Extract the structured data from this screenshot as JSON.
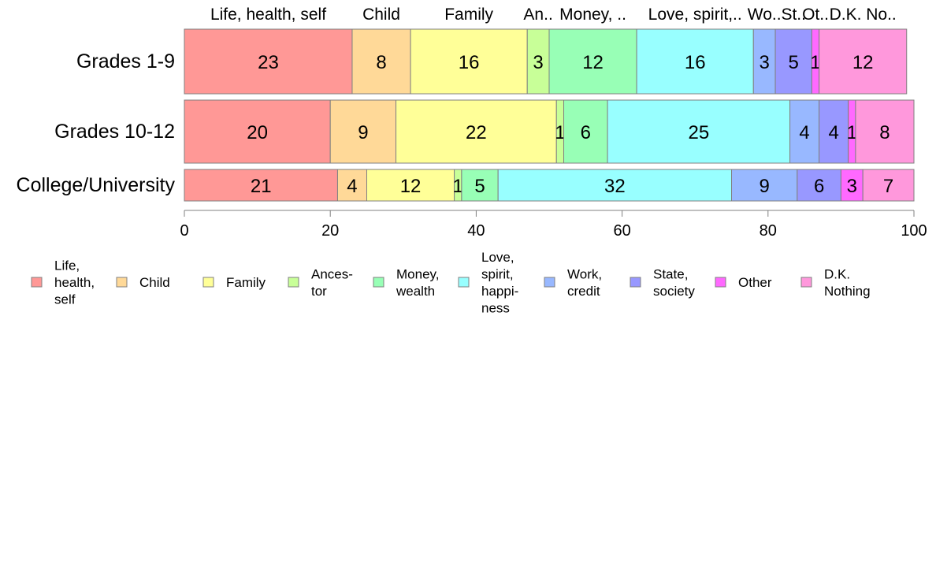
{
  "chart_data": {
    "type": "bar",
    "orientation": "horizontal",
    "stacked": true,
    "categories": [
      "Grades 1-9",
      "Grades 10-12",
      "College/University"
    ],
    "top_labels": [
      "Life, health, self",
      "Child",
      "Family",
      "An..",
      "Money, ..",
      "Love, spirit,..",
      "Wo..",
      "St..",
      "Ot..",
      "D.K. No.."
    ],
    "series": [
      {
        "name": "Life, health, self",
        "legend_label": [
          "Life,",
          "health,",
          "self"
        ],
        "color": "#FF9896",
        "values": [
          23,
          20,
          21
        ]
      },
      {
        "name": "Child",
        "legend_label": [
          "Child"
        ],
        "color": "#FFD998",
        "values": [
          8,
          9,
          4
        ]
      },
      {
        "name": "Family",
        "legend_label": [
          "Family"
        ],
        "color": "#FFFF98",
        "values": [
          16,
          22,
          12
        ]
      },
      {
        "name": "Ancestor",
        "legend_label": [
          "Ances-",
          "tor"
        ],
        "color": "#C8FF98",
        "values": [
          3,
          1,
          1
        ]
      },
      {
        "name": "Money, wealth",
        "legend_label": [
          "Money,",
          "wealth"
        ],
        "color": "#98FFB6",
        "values": [
          12,
          6,
          5
        ]
      },
      {
        "name": "Love, spirit, happiness",
        "legend_label": [
          "Love,",
          "spirit,",
          "happi-",
          "ness"
        ],
        "color": "#98FFFF",
        "values": [
          16,
          25,
          32
        ]
      },
      {
        "name": "Work, credit",
        "legend_label": [
          "Work,",
          "credit"
        ],
        "color": "#98B8FF",
        "values": [
          3,
          4,
          9
        ]
      },
      {
        "name": "State, society",
        "legend_label": [
          "State,",
          "society"
        ],
        "color": "#9898FF",
        "values": [
          5,
          4,
          6
        ]
      },
      {
        "name": "Other",
        "legend_label": [
          "Other"
        ],
        "color": "#FF69FF",
        "values": [
          1,
          1,
          3
        ]
      },
      {
        "name": "D.K. Nothing",
        "legend_label": [
          "D.K.",
          "Nothing"
        ],
        "color": "#FF98DC",
        "values": [
          12,
          8,
          7
        ]
      }
    ],
    "xlim": [
      0,
      100
    ],
    "xticks": [
      0,
      20,
      40,
      60,
      80,
      100
    ],
    "grid": false,
    "legend": "bottom"
  }
}
